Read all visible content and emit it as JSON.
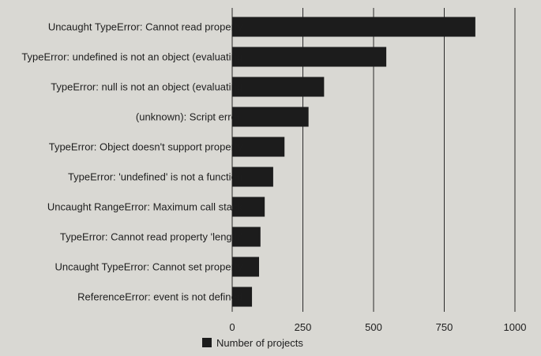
{
  "chart_data": {
    "type": "bar",
    "orientation": "horizontal",
    "categories": [
      "Uncaught TypeError: Cannot read property",
      "TypeError: undefined is not an object (evaluating",
      "TypeError: null is not an object (evaluating",
      "(unknown): Script error.",
      "TypeError: Object doesn't support property",
      "TypeError: 'undefined' is not a function",
      "Uncaught RangeError: Maximum call stack",
      "TypeError: Cannot read property 'length'",
      "Uncaught TypeError: Cannot set property",
      "ReferenceError: event is not defined"
    ],
    "series": [
      {
        "name": "Number of projects",
        "values": [
          860,
          545,
          325,
          270,
          185,
          145,
          115,
          100,
          95,
          70
        ]
      }
    ],
    "xlim": [
      0,
      1000
    ],
    "xticks": [
      "0",
      "250",
      "500",
      "750",
      "1000"
    ],
    "grid": true,
    "legend_position": "bottom",
    "colors": {
      "bar": "#1c1c1c",
      "grid": "#2a2a2a",
      "background": "#d9d8d3"
    }
  }
}
